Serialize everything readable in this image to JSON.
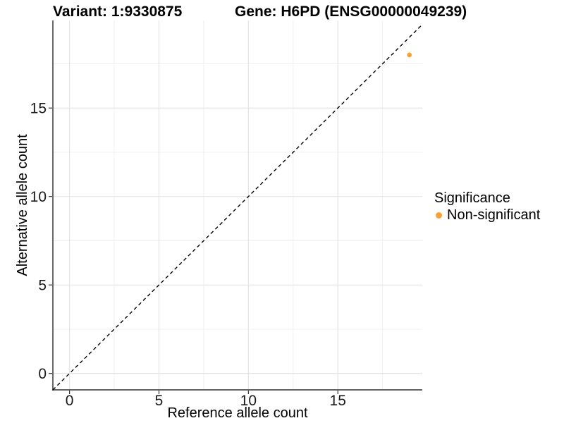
{
  "titles": {
    "variant": "Variant: 1:9330875",
    "gene": "Gene: H6PD (ENSG00000049239)"
  },
  "legend": {
    "title": "Significance",
    "items": [
      {
        "label": "Non-significant",
        "color": "#F9A234"
      }
    ]
  },
  "chart_data": {
    "type": "scatter",
    "title_left": "Variant: 1:9330875",
    "title_right": "Gene: H6PD (ENSG00000049239)",
    "xlabel": "Reference allele count",
    "ylabel": "Alternative allele count",
    "xlim": [
      -0.93,
      19.72
    ],
    "ylim": [
      -0.93,
      19.95
    ],
    "x_ticks": [
      0,
      5,
      10,
      15
    ],
    "y_ticks": [
      0,
      5,
      10,
      15
    ],
    "x_minor_ticks": [
      2.5,
      7.5,
      12.5,
      17.5
    ],
    "y_minor_ticks": [
      2.5,
      7.5,
      12.5,
      17.5
    ],
    "grid": true,
    "legend_position": "right",
    "series": [
      {
        "name": "Non-significant",
        "color": "#F9A234",
        "points": [
          {
            "x": 19,
            "y": 18
          }
        ]
      }
    ],
    "reference_line": {
      "type": "identity y=x",
      "style": "dashed",
      "color": "#000000"
    }
  },
  "colors": {
    "point": "#F9A234",
    "grid_major": "#E4E4E4",
    "grid_minor": "#EFEFEF",
    "axis_line": "#4D4D4D",
    "tick_mark": "#333333",
    "dashed_line": "#000000",
    "background": "#FFFFFF"
  }
}
